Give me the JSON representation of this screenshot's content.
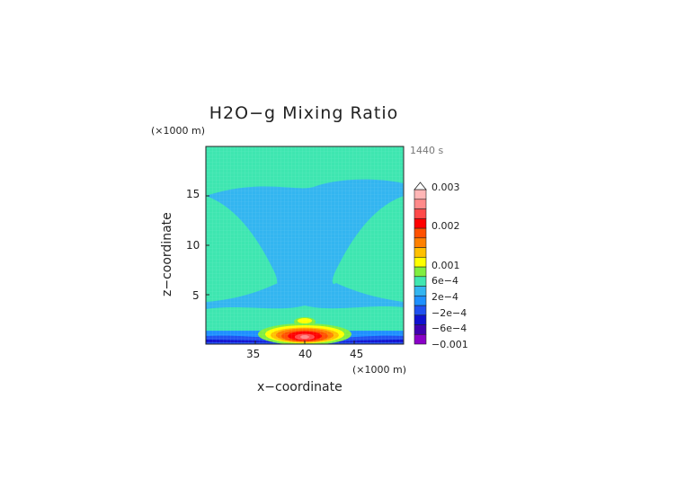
{
  "chart_data": {
    "type": "heatmap",
    "title": "H2O−g Mixing Ratio",
    "time_label": "1440 s",
    "xlabel": "x−coordinate",
    "ylabel": "z−coordinate",
    "x_unit": "(×1000 m)",
    "y_unit": "(×1000 m)",
    "xlim": [
      30,
      50
    ],
    "ylim": [
      0,
      20
    ],
    "x_ticks": [
      "35",
      "40",
      "45"
    ],
    "y_ticks": [
      "5",
      "10",
      "15"
    ],
    "colorbar": {
      "labels": [
        "0.003",
        "0.002",
        "0.001",
        "6e−4",
        "2e−4",
        "−2e−4",
        "−6e−4",
        "−0.001"
      ],
      "levels": [
        -0.001,
        -0.0008,
        -0.0006,
        -0.0004,
        -0.0002,
        0,
        0.0002,
        0.0004,
        0.0006,
        0.0008,
        0.001,
        0.0013,
        0.0016,
        0.002,
        0.0025,
        0.003
      ],
      "colors": [
        "#8a00c8",
        "#4000b0",
        "#1010d0",
        "#2050f0",
        "#1e90ff",
        "#33b5f0",
        "#40e6b0",
        "#80ee40",
        "#ffff00",
        "#ffc000",
        "#ff8000",
        "#ff5000",
        "#ff0000",
        "#ff4a4a",
        "#ff8a8a",
        "#ffb6b6"
      ]
    },
    "regions": [
      {
        "name": "background",
        "value": 0.0001
      },
      {
        "name": "upper band",
        "z_range": [
          17,
          20
        ],
        "value": 0.0001
      },
      {
        "name": "mid layer",
        "value": -0.0001
      },
      {
        "name": "left lobe",
        "x_range": [
          30,
          37
        ],
        "z_range": [
          6,
          16
        ],
        "value": 0.0001
      },
      {
        "name": "right lobe",
        "x_range": [
          43,
          50
        ],
        "z_range": [
          6,
          16
        ],
        "value": 0.0001
      },
      {
        "name": "low band",
        "z_range": [
          1,
          4
        ],
        "value": 0.0001
      },
      {
        "name": "surface layer",
        "z_range": [
          0,
          1
        ],
        "value": -0.0007
      },
      {
        "name": "peak",
        "x": 40,
        "z": 0.8,
        "value": 0.0025
      }
    ]
  }
}
